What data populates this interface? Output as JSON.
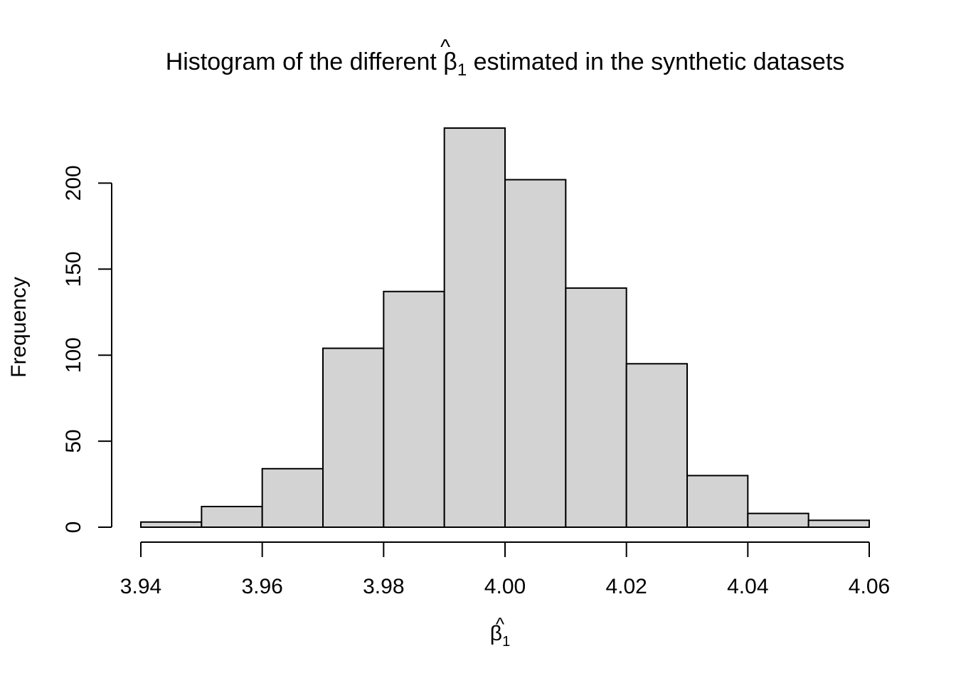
{
  "chart_data": {
    "type": "bar",
    "subtype": "histogram",
    "title": {
      "prefix": "Histogram of the different ",
      "symbol": "β",
      "hat": "^",
      "subscript": "1",
      "suffix": " estimated in the synthetic datasets"
    },
    "xlabel": {
      "symbol": "β",
      "hat": "^",
      "subscript": "1"
    },
    "ylabel": "Frequency",
    "bins": [
      {
        "x0": 3.94,
        "x1": 3.95,
        "count": 3
      },
      {
        "x0": 3.95,
        "x1": 3.96,
        "count": 12
      },
      {
        "x0": 3.96,
        "x1": 3.97,
        "count": 34
      },
      {
        "x0": 3.97,
        "x1": 3.98,
        "count": 104
      },
      {
        "x0": 3.98,
        "x1": 3.99,
        "count": 137
      },
      {
        "x0": 3.99,
        "x1": 4.0,
        "count": 232
      },
      {
        "x0": 4.0,
        "x1": 4.01,
        "count": 202
      },
      {
        "x0": 4.01,
        "x1": 4.02,
        "count": 139
      },
      {
        "x0": 4.02,
        "x1": 4.03,
        "count": 95
      },
      {
        "x0": 4.03,
        "x1": 4.04,
        "count": 30
      },
      {
        "x0": 4.04,
        "x1": 4.05,
        "count": 8
      },
      {
        "x0": 4.05,
        "x1": 4.06,
        "count": 4
      }
    ],
    "xlim": [
      3.94,
      4.06
    ],
    "ylim": [
      0,
      232
    ],
    "x_ticks": [
      "3.94",
      "3.96",
      "3.98",
      "4.00",
      "4.02",
      "4.04",
      "4.06"
    ],
    "y_ticks": [
      "0",
      "50",
      "100",
      "150",
      "200"
    ],
    "grid": false,
    "legend": "none",
    "bar_fill": "#d3d3d3",
    "bar_stroke": "#000000"
  }
}
